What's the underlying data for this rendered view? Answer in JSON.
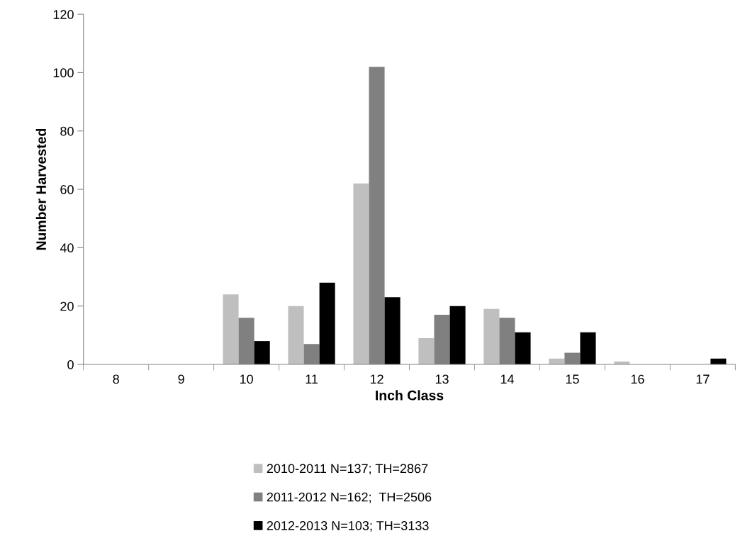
{
  "chart_data": {
    "type": "bar",
    "xlabel": "Inch Class",
    "ylabel": "Number Harvested",
    "categories": [
      "8",
      "9",
      "10",
      "11",
      "12",
      "13",
      "14",
      "15",
      "16",
      "17"
    ],
    "series": [
      {
        "name": "2010-2011 N=137; TH=2867",
        "color": "#bfbfbf",
        "values": [
          0,
          0,
          24,
          20,
          62,
          9,
          19,
          2,
          1,
          0
        ]
      },
      {
        "name": "2011-2012 N=162;  TH=2506",
        "color": "#808080",
        "values": [
          0,
          0,
          16,
          7,
          102,
          17,
          16,
          4,
          0,
          0
        ]
      },
      {
        "name": "2012-2013 N=103; TH=3133",
        "color": "#000000",
        "values": [
          0,
          0,
          8,
          28,
          23,
          20,
          11,
          11,
          0,
          2
        ]
      }
    ],
    "ylim": [
      0,
      120
    ],
    "yticks": [
      0,
      20,
      40,
      60,
      80,
      100,
      120
    ],
    "grid": false,
    "legend": "bottom"
  }
}
